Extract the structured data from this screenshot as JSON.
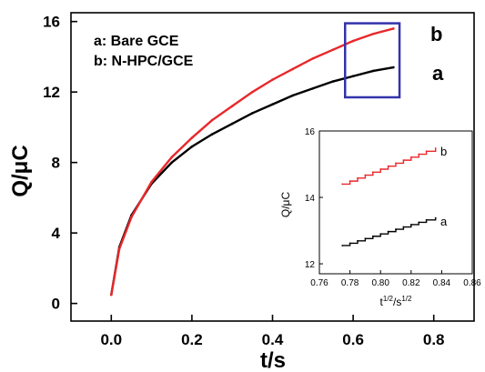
{
  "colors": {
    "series_a": "#000000",
    "series_b": "#e8282b",
    "highlight_box": "#3333aa"
  },
  "legend": {
    "a": "a: Bare GCE",
    "b": "b: N-HPC/GCE"
  },
  "chart_data": [
    {
      "type": "line",
      "xlabel": "t/s",
      "ylabel": "Q/μC",
      "xlim": [
        -0.1,
        0.9
      ],
      "ylim": [
        -1,
        16.5
      ],
      "xticks": [
        "0.0",
        "0.2",
        "0.4",
        "0.6",
        "0.8"
      ],
      "xtick_values": [
        0.0,
        0.2,
        0.4,
        0.6,
        0.8
      ],
      "yticks": [
        "0",
        "4",
        "8",
        "12",
        "16"
      ],
      "ytick_values": [
        0,
        4,
        8,
        12,
        16
      ],
      "grid": false,
      "legend_position": "top-left",
      "series": [
        {
          "name": "a",
          "label": "a",
          "color": "#000000",
          "x": [
            0.0,
            0.02,
            0.05,
            0.1,
            0.15,
            0.2,
            0.25,
            0.3,
            0.35,
            0.4,
            0.45,
            0.5,
            0.55,
            0.6,
            0.65,
            0.7
          ],
          "y": [
            0.5,
            3.2,
            5.0,
            6.8,
            8.0,
            8.9,
            9.6,
            10.2,
            10.8,
            11.3,
            11.8,
            12.2,
            12.6,
            12.9,
            13.2,
            13.4
          ]
        },
        {
          "name": "b",
          "label": "b",
          "color": "#e8282b",
          "x": [
            0.0,
            0.02,
            0.05,
            0.1,
            0.15,
            0.2,
            0.25,
            0.3,
            0.35,
            0.4,
            0.45,
            0.5,
            0.55,
            0.6,
            0.65,
            0.7
          ],
          "y": [
            0.5,
            3.1,
            4.9,
            6.9,
            8.3,
            9.4,
            10.4,
            11.2,
            12.0,
            12.7,
            13.3,
            13.9,
            14.4,
            14.9,
            15.3,
            15.6
          ]
        }
      ],
      "highlight_box": {
        "x": [
          0.58,
          0.715
        ],
        "y": [
          11.7,
          15.9
        ]
      }
    },
    {
      "type": "line",
      "inset": true,
      "xlabel": "t^1/2/s^1/2",
      "ylabel": "Q/μC",
      "xlim": [
        0.76,
        0.86
      ],
      "ylim": [
        11.7,
        16.0
      ],
      "xticks": [
        "0.76",
        "0.78",
        "0.80",
        "0.82",
        "0.84",
        "0.86"
      ],
      "xtick_values": [
        0.76,
        0.78,
        0.8,
        0.82,
        0.84,
        0.86
      ],
      "yticks": [
        "12",
        "14",
        "16"
      ],
      "ytick_values": [
        12,
        14,
        16
      ],
      "grid": false,
      "series": [
        {
          "name": "a",
          "label": "a",
          "color": "#000000",
          "x": [
            0.775,
            0.78,
            0.785,
            0.79,
            0.795,
            0.8,
            0.805,
            0.81,
            0.815,
            0.82,
            0.825,
            0.83,
            0.836
          ],
          "y": [
            12.55,
            12.62,
            12.69,
            12.76,
            12.83,
            12.9,
            12.97,
            13.04,
            13.11,
            13.18,
            13.25,
            13.32,
            13.38
          ]
        },
        {
          "name": "b",
          "label": "b",
          "color": "#e8282b",
          "x": [
            0.775,
            0.78,
            0.785,
            0.79,
            0.795,
            0.8,
            0.805,
            0.81,
            0.815,
            0.82,
            0.825,
            0.83,
            0.836
          ],
          "y": [
            14.4,
            14.49,
            14.58,
            14.67,
            14.76,
            14.85,
            14.94,
            15.03,
            15.12,
            15.21,
            15.3,
            15.39,
            15.48
          ]
        }
      ]
    }
  ]
}
